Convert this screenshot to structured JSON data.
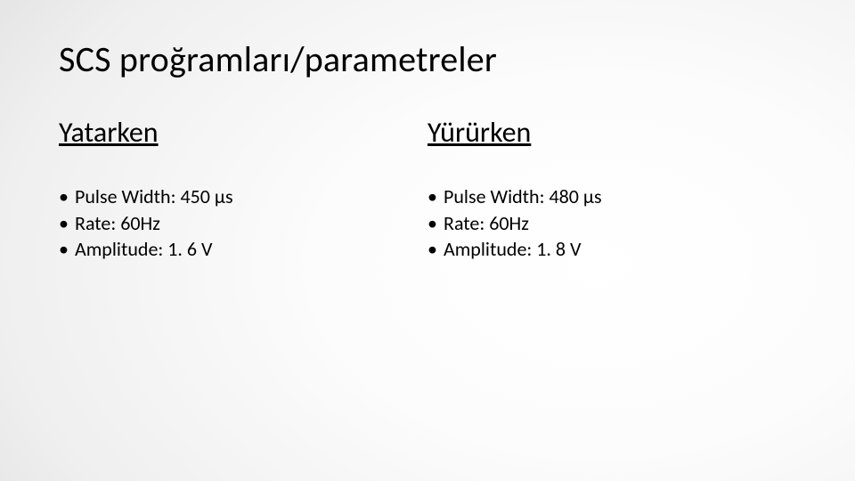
{
  "slide": {
    "title": "SCS proğramları/parametreler",
    "title_fontsize": 40,
    "background_gradient": {
      "type": "radial",
      "center": "70% 55%",
      "stops": [
        "#ffffff",
        "#fcfcfc",
        "#efefef",
        "#dedede"
      ]
    },
    "text_color": "#000000",
    "columns": [
      {
        "heading": "Yatarken",
        "heading_fontsize": 32,
        "heading_underline": true,
        "items": [
          "Pulse Width: 450 µs",
          "Rate: 60Hz",
          "Amplitude: 1. 6 V"
        ],
        "item_fontsize": 22
      },
      {
        "heading": "Yürürken",
        "heading_fontsize": 32,
        "heading_underline": true,
        "items": [
          "Pulse Width: 480 µs",
          "Rate: 60Hz",
          "Amplitude: 1. 8 V"
        ],
        "item_fontsize": 22
      }
    ]
  }
}
